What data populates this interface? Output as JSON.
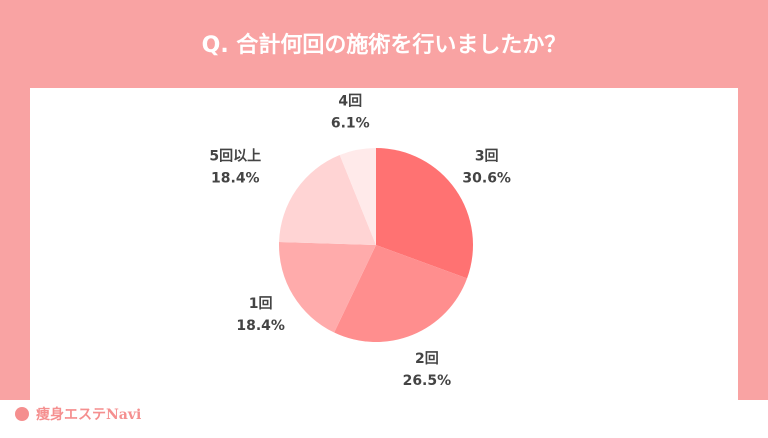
{
  "chart_data": {
    "type": "pie",
    "title": "Q. 合計何回の施術を行いましたか？",
    "categories": [
      "3回",
      "2回",
      "1回",
      "5回以上",
      "4回"
    ],
    "values": [
      30.6,
      26.5,
      18.4,
      18.4,
      6.1
    ],
    "value_labels": [
      "30.6%",
      "26.5%",
      "18.4%",
      "18.4%",
      "6.1%"
    ],
    "colors": [
      "#ff7272",
      "#ff8e8e",
      "#ffabab",
      "#ffd4d4",
      "#ffeaea"
    ]
  },
  "brand": "痩身エステNavi"
}
